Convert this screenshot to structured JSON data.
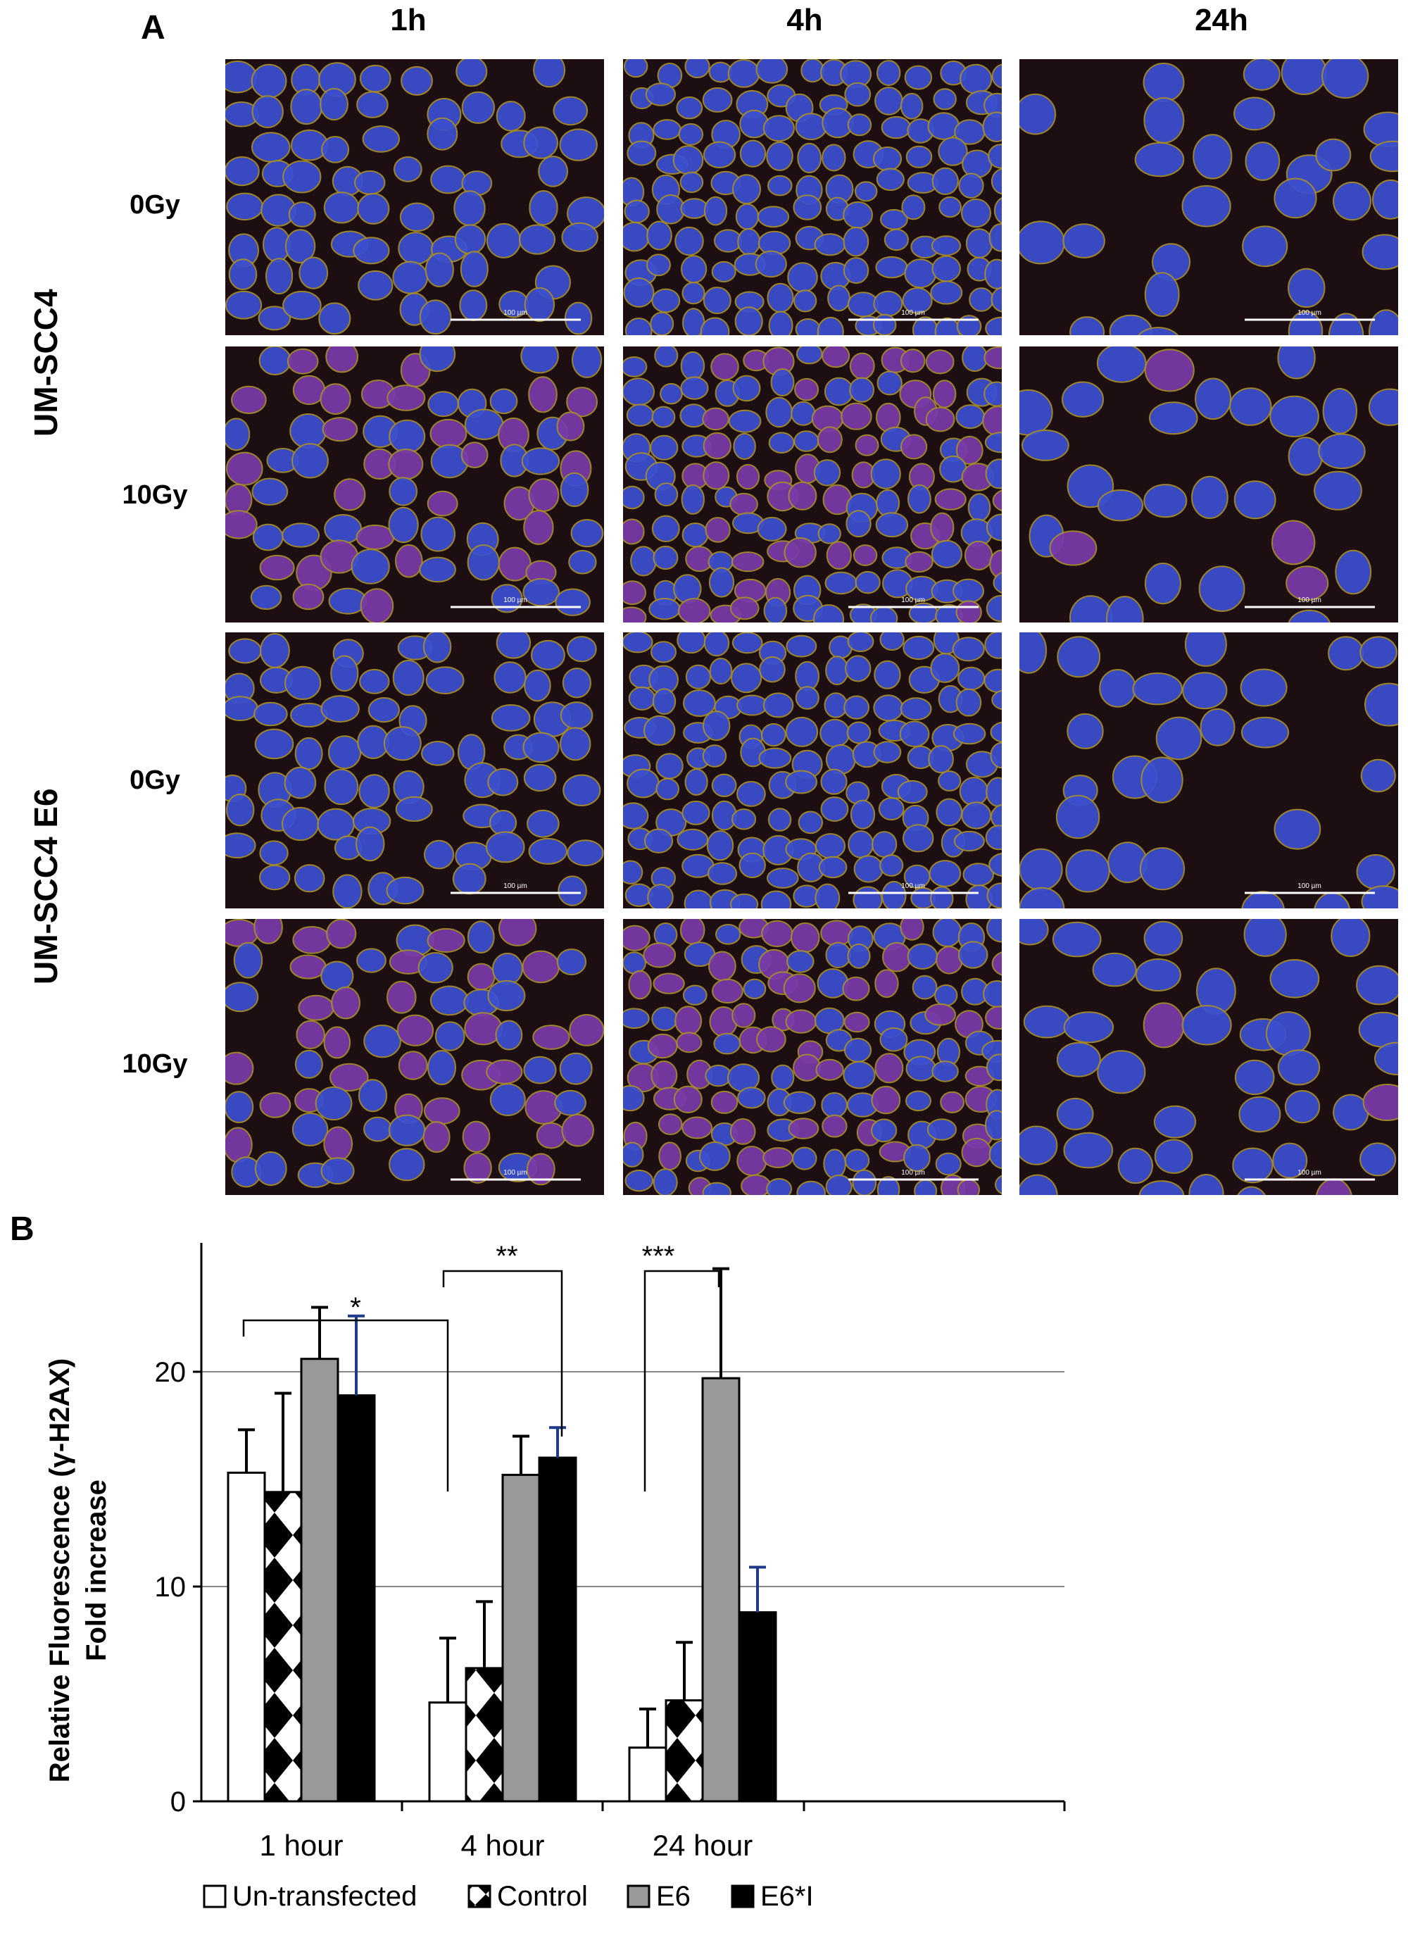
{
  "panel_a": {
    "letter": "A",
    "columns": [
      "1h",
      "4h",
      "24h"
    ],
    "rows": [
      {
        "cell_line": "UM-SCC4",
        "doses": [
          "0Gy",
          "10Gy"
        ]
      },
      {
        "cell_line": "UM-SCC4 E6",
        "doses": [
          "0Gy",
          "10Gy"
        ]
      }
    ],
    "scale_bar_text": "100 µm",
    "colors": {
      "nucleus": "#3b4fd0",
      "outline": "#a88f2a",
      "background": "#1d0e12",
      "gamma_h2ax": "#d0348f"
    }
  },
  "panel_b": {
    "letter": "B",
    "significance": [
      "*",
      "**",
      "***"
    ]
  },
  "chart_data": {
    "type": "bar",
    "ylabel": "Relative Fluorescence (γ-H2AX) Fold increase",
    "ylabel_lines": [
      "Relative Fluorescence (γ-H2AX)",
      "Fold increase"
    ],
    "categories": [
      "1 hour",
      "4 hour",
      "24 hour"
    ],
    "ylim": [
      0,
      26
    ],
    "yticks": [
      0,
      10,
      20
    ],
    "grid": true,
    "legend_position": "bottom",
    "series": [
      {
        "name": "Un-transfected",
        "values": [
          15.3,
          4.6,
          2.5
        ],
        "errors": [
          2.0,
          3.0,
          1.8
        ],
        "fill": "#ffffff",
        "pattern": "none"
      },
      {
        "name": "Control",
        "values": [
          14.4,
          6.2,
          4.7
        ],
        "errors": [
          4.6,
          3.1,
          2.7
        ],
        "fill": "#ffffff",
        "pattern": "diamond"
      },
      {
        "name": "E6",
        "values": [
          20.6,
          15.2,
          19.7
        ],
        "errors": [
          2.4,
          1.8,
          5.1
        ],
        "fill": "#999999",
        "pattern": "none"
      },
      {
        "name": "E6*I",
        "values": [
          18.9,
          16.0,
          8.8
        ],
        "errors": [
          3.7,
          1.4,
          2.1
        ],
        "fill": "#000000",
        "pattern": "none"
      }
    ],
    "annotations": [
      {
        "label": "*",
        "from_category": 0,
        "to_category": 1,
        "level": 23.4
      },
      {
        "label": "**",
        "from_category": 1,
        "to_category": 1,
        "level": 27.1
      },
      {
        "label": "***",
        "from_category": 2,
        "to_category": 2,
        "level": 27.1
      }
    ]
  }
}
